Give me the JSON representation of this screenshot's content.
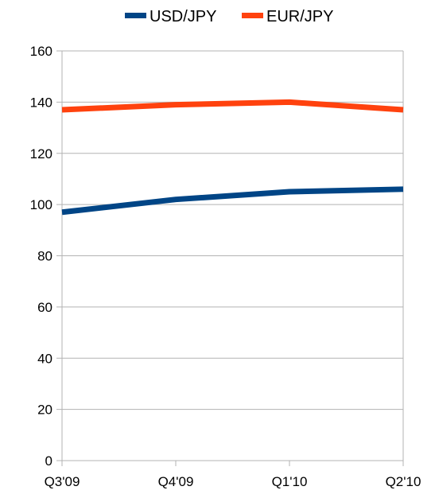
{
  "chart_data": {
    "type": "line",
    "categories": [
      "Q3'09",
      "Q4'09",
      "Q1'10",
      "Q2'10"
    ],
    "series": [
      {
        "name": "USD/JPY",
        "color": "#004586",
        "values": [
          97,
          102,
          105,
          106
        ]
      },
      {
        "name": "EUR/JPY",
        "color": "#ff420e",
        "values": [
          137,
          139,
          140,
          137
        ]
      }
    ],
    "ylim": [
      0,
      160
    ],
    "yticks": [
      0,
      20,
      40,
      60,
      80,
      100,
      120,
      140,
      160
    ],
    "grid": true,
    "legend_position": "top",
    "title": "",
    "xlabel": "",
    "ylabel": ""
  }
}
